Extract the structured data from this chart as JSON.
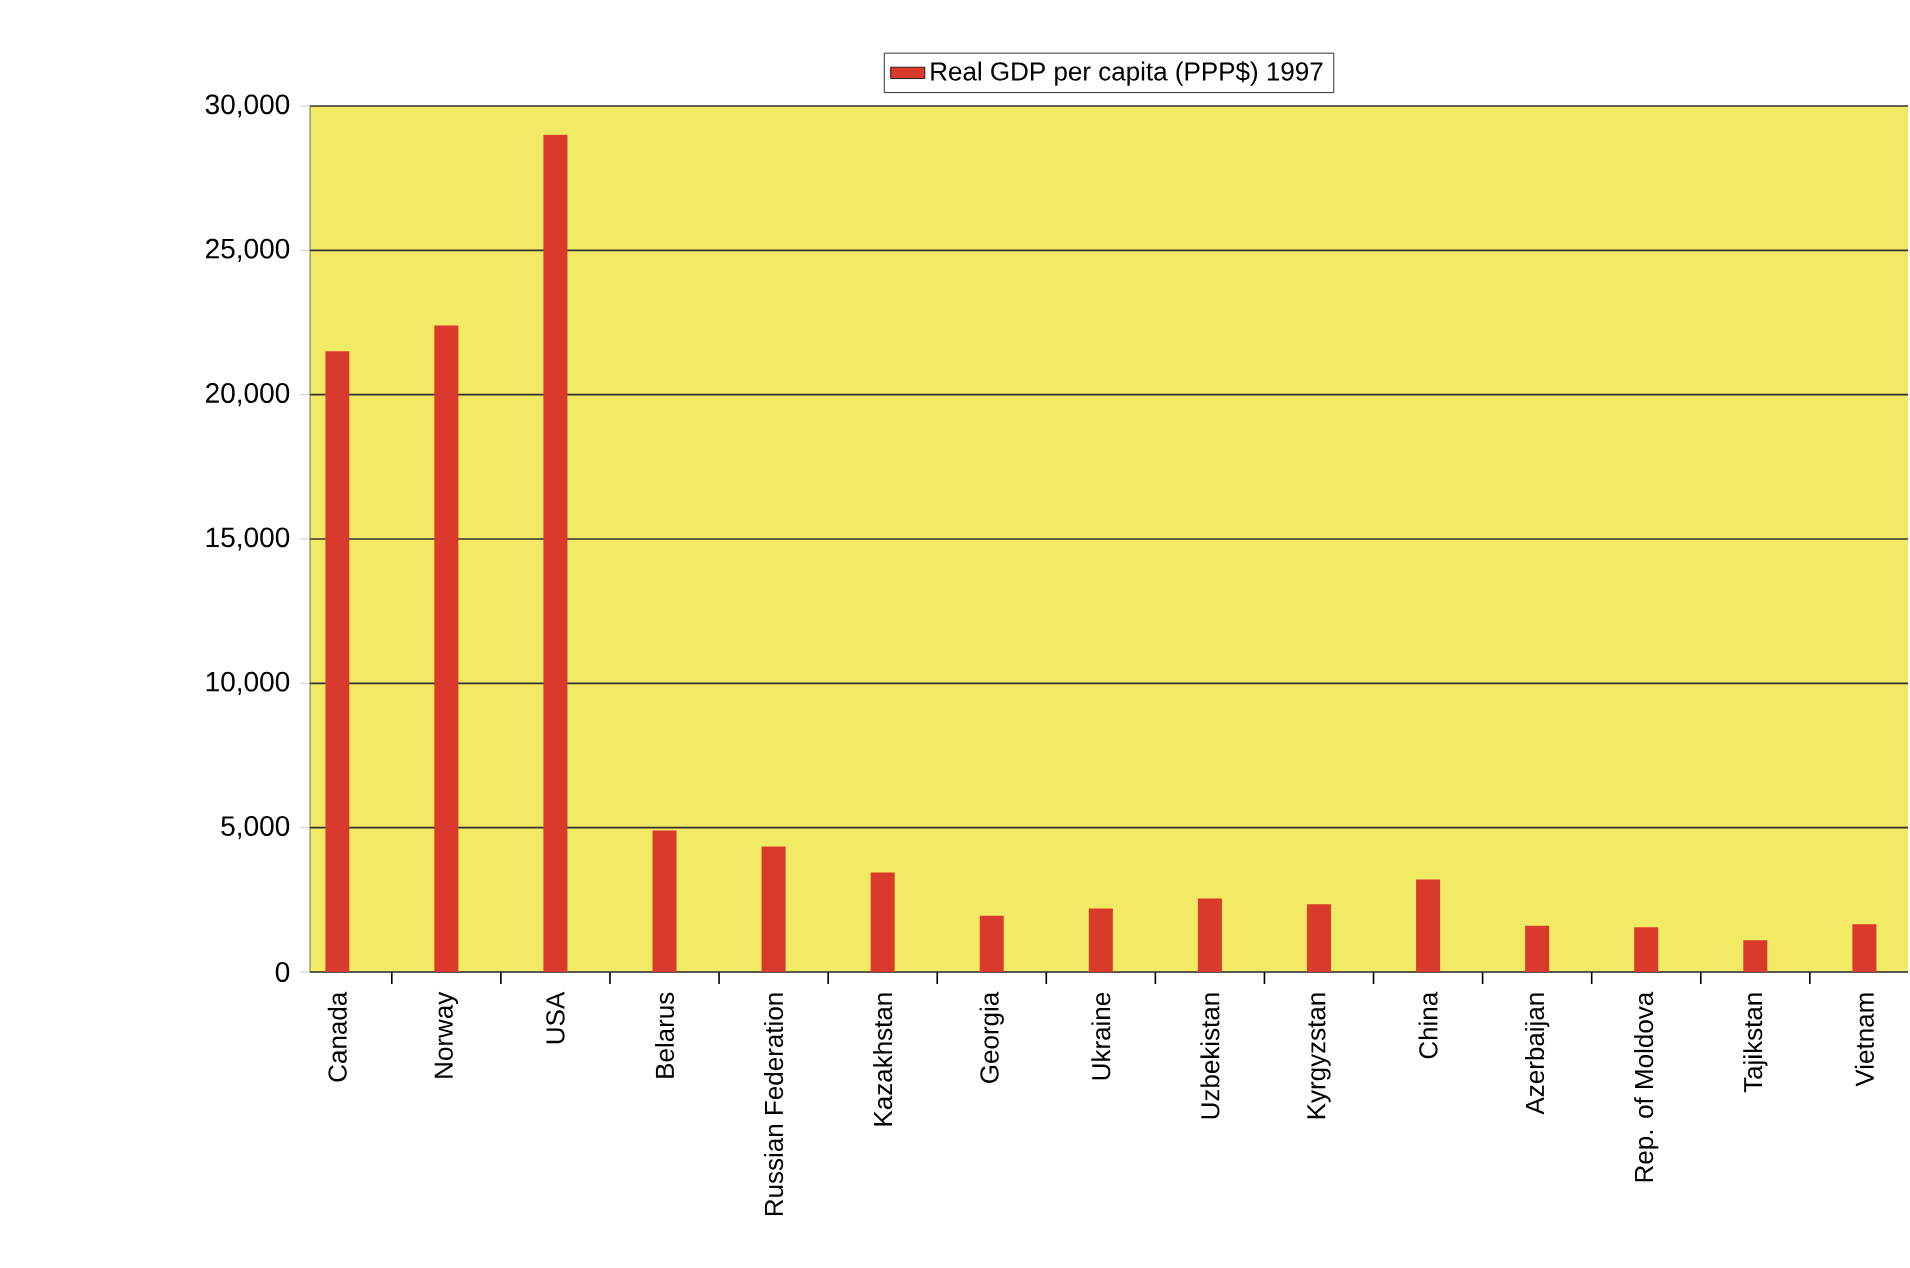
{
  "chart_data": {
    "type": "bar",
    "categories": [
      "Canada",
      "Norway",
      "USA",
      "Belarus",
      "Russian Federation",
      "Kazakhstan",
      "Georgia",
      "Ukraine",
      "Uzbekistan",
      "Kyrgyzstan",
      "China",
      "Azerbaijan",
      "Rep. of Moldova",
      "Tajikstan",
      "Vietnam"
    ],
    "series": [
      {
        "name": "Real GDP per capita (PPP$) 1997",
        "color": "#d93a2b",
        "values": [
          21500,
          22400,
          29000,
          4900,
          4350,
          3450,
          1950,
          2200,
          2550,
          2350,
          3200,
          1600,
          1550,
          1100,
          1650
        ]
      }
    ],
    "ylim": [
      0,
      30000
    ],
    "yticks": [
      {
        "value": 0,
        "label": "0"
      },
      {
        "value": 5000,
        "label": "5,000"
      },
      {
        "value": 10000,
        "label": "10,000"
      },
      {
        "value": 15000,
        "label": "15,000"
      },
      {
        "value": 20000,
        "label": "20,000"
      },
      {
        "value": 25000,
        "label": "25,000"
      },
      {
        "value": 30000,
        "label": "30,000"
      }
    ],
    "grid": "y",
    "legend": "top"
  }
}
